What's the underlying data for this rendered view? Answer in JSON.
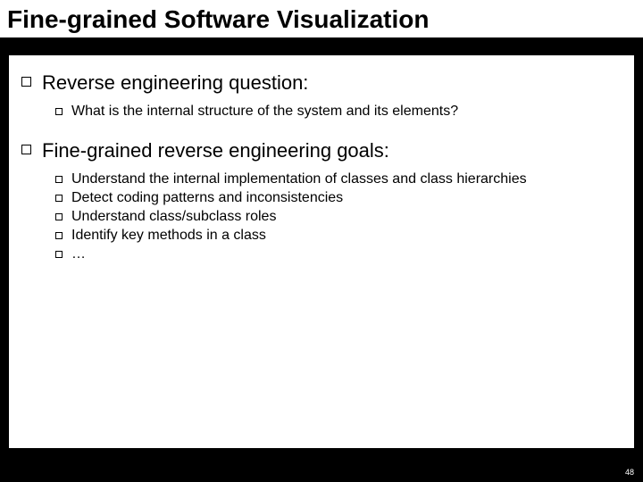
{
  "title": "Fine-grained Software Visualization",
  "sections": [
    {
      "heading": "Reverse engineering question:",
      "items": [
        "What is the internal structure of the system and its elements?"
      ]
    },
    {
      "heading": "Fine-grained reverse engineering goals:",
      "items": [
        "Understand the internal implementation of classes and class hierarchies",
        "Detect coding patterns and inconsistencies",
        "Understand class/subclass roles",
        "Identify key methods in a class",
        "…"
      ]
    }
  ],
  "pageNumber": "48",
  "colors": {
    "background": "#000000",
    "panel": "#ffffff",
    "text": "#000000",
    "pageNumText": "#ffffff"
  }
}
